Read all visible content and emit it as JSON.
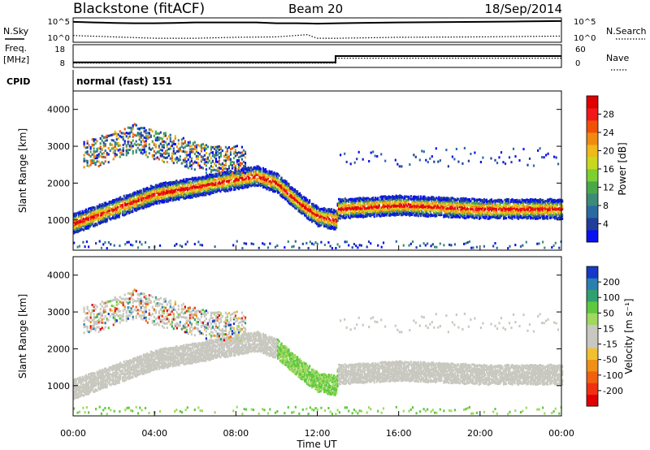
{
  "header": {
    "station": "Blackstone (fitACF)",
    "beam": "Beam 20",
    "date": "18/Sep/2014"
  },
  "strip_labels": {
    "nsky": "N.Sky",
    "nsearch": "N.Search",
    "freq_line1": "Freq.",
    "freq_line2": "[MHz]",
    "nave": "Nave",
    "cpid": "CPID",
    "cpid_value": "normal (fast) 151",
    "noise_tick_hi_left": "10^5",
    "noise_tick_lo_left": "10^0",
    "noise_tick_hi_right": "10^5",
    "noise_tick_lo_right": "10^0",
    "freq_tick_hi": "18",
    "freq_tick_lo": "8",
    "nave_tick_hi": "60",
    "nave_tick_lo": "0"
  },
  "axes": {
    "ylabel": "Slant Range [km]",
    "xlabel": "Time UT",
    "xticks": [
      "00:00",
      "04:00",
      "08:00",
      "12:00",
      "16:00",
      "20:00",
      "00:00"
    ],
    "yticks": [
      "1000",
      "2000",
      "3000",
      "4000"
    ]
  },
  "colorbars": {
    "power": {
      "label": "Power [dB]",
      "ticks": [
        "4",
        "8",
        "12",
        "16",
        "20",
        "24",
        "28"
      ],
      "colors": [
        "#0a10f0",
        "#203d9c",
        "#2a6aa0",
        "#3c8a78",
        "#4aa84a",
        "#7cd030",
        "#c8d820",
        "#f0b818",
        "#f08a10",
        "#f05008",
        "#f01818",
        "#e00000"
      ]
    },
    "velocity": {
      "label": "Velocity [m s⁻¹]",
      "ticks": [
        "200",
        "100",
        "50",
        "15",
        "-15",
        "-50",
        "-100",
        "-200"
      ],
      "colors": [
        "#1838c8",
        "#2880b0",
        "#30a070",
        "#5ec840",
        "#a0d860",
        "#c8c8c0",
        "#c8c8c0",
        "#f0c030",
        "#f09018",
        "#f06010",
        "#f03010",
        "#e00000"
      ]
    }
  },
  "chart_data": [
    {
      "type": "line",
      "title": "N.Sky / N.Search",
      "x_range_hours": [
        0,
        24
      ],
      "y_scale": "log",
      "ylim": [
        1,
        100000
      ],
      "series": [
        {
          "name": "N.Sky",
          "style": "solid",
          "x": [
            0,
            1,
            2,
            3,
            4,
            5,
            6,
            7,
            8,
            9,
            10,
            11,
            12,
            13,
            14,
            16,
            18,
            20,
            22,
            24
          ],
          "values": [
            20000,
            15000,
            12000,
            10000,
            10000,
            12000,
            15000,
            15000,
            15000,
            15000,
            10000,
            10000,
            8000,
            10000,
            12000,
            15000,
            18000,
            20000,
            25000,
            30000
          ]
        },
        {
          "name": "N.Search",
          "style": "dotted",
          "x": [
            0,
            2,
            4,
            6,
            8,
            10,
            11.5,
            12,
            13,
            16,
            20,
            24
          ],
          "values": [
            20,
            10,
            5,
            5,
            8,
            10,
            30,
            5,
            5,
            8,
            10,
            15
          ]
        }
      ]
    },
    {
      "type": "line",
      "title": "Freq. / Nave",
      "x_range_hours": [
        0,
        24
      ],
      "series": [
        {
          "name": "Freq.",
          "units": "MHz",
          "ylim": [
            8,
            18
          ],
          "style": "solid",
          "x": [
            0,
            12.9,
            12.9,
            24
          ],
          "values": [
            10,
            10,
            13,
            13
          ]
        },
        {
          "name": "Nave",
          "ylim": [
            0,
            60
          ],
          "style": "dotted",
          "x": [
            0,
            12.9,
            12.9,
            24
          ],
          "values": [
            10,
            10,
            24,
            24
          ]
        }
      ]
    },
    {
      "type": "heatmap",
      "title": "Power [dB]",
      "x_range_hours": [
        0,
        24
      ],
      "ylim_km": [
        180,
        4500
      ],
      "clim": [
        0,
        32
      ],
      "features": [
        {
          "name": "main-band",
          "x": [
            0,
            1,
            2,
            3,
            4,
            5,
            6,
            7,
            8,
            9,
            10,
            11,
            12,
            12.9,
            13,
            16,
            20,
            24
          ],
          "range_km": [
            900,
            1100,
            1300,
            1500,
            1700,
            1800,
            1900,
            2000,
            2100,
            2200,
            2000,
            1500,
            1100,
            1000,
            1300,
            1400,
            1300,
            1300
          ]
        },
        {
          "name": "upper-patch",
          "x": [
            1,
            2,
            3,
            4,
            5,
            6,
            7,
            8
          ],
          "range_km": [
            2800,
            3000,
            3200,
            3000,
            2900,
            2700,
            2600,
            2600
          ]
        }
      ]
    },
    {
      "type": "heatmap",
      "title": "Velocity [m s⁻¹]",
      "x_range_hours": [
        0,
        24
      ],
      "ylim_km": [
        180,
        4500
      ],
      "clim": [
        -200,
        200
      ]
    }
  ]
}
